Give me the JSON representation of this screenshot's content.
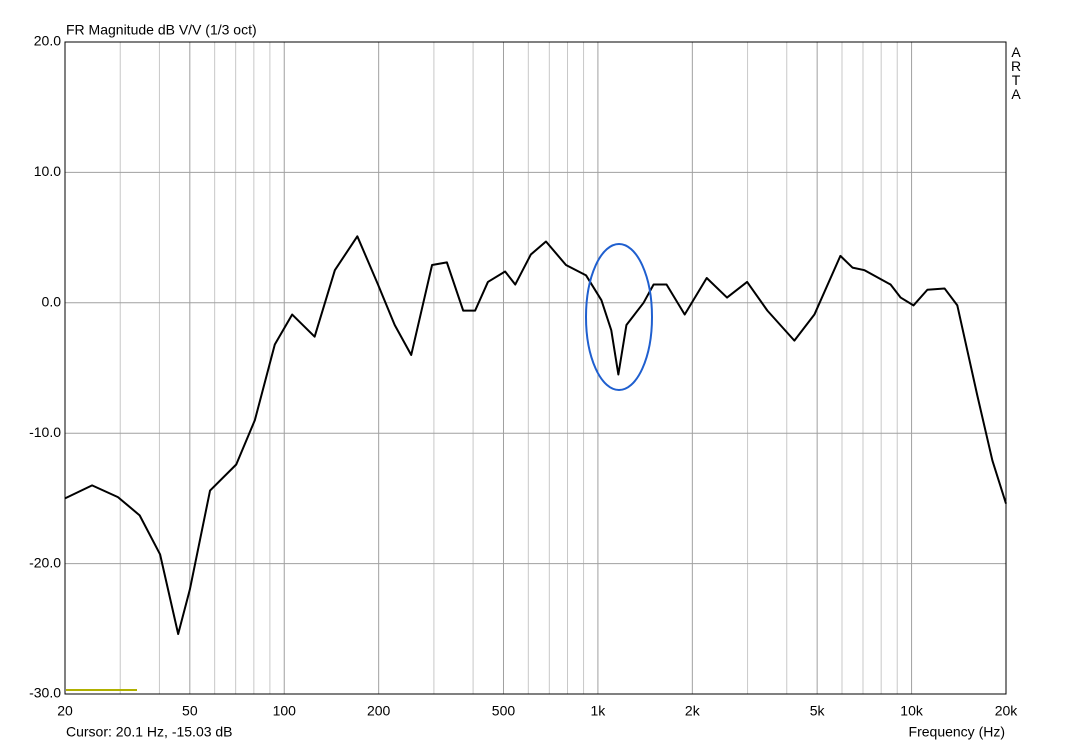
{
  "chart_data": {
    "type": "line",
    "title": "FR Magnitude dB V/V (1/3 oct)",
    "brand": "ARTA",
    "cursor_readout": "Cursor: 20.1 Hz, -15.03 dB",
    "x_label": "Frequency (Hz)",
    "log_x": true,
    "grid": true,
    "xlim": [
      20,
      20000
    ],
    "ylim": [
      -30,
      20
    ],
    "xticks": [
      20,
      50,
      100,
      200,
      500,
      {
        "value": 1000,
        "label": "1k"
      },
      {
        "value": 2000,
        "label": "2k"
      },
      {
        "value": 5000,
        "label": "5k"
      },
      {
        "value": 10000,
        "label": "10k"
      },
      {
        "value": 20000,
        "label": "20k"
      }
    ],
    "xminorticks": [
      30,
      40,
      60,
      70,
      80,
      90,
      300,
      400,
      600,
      700,
      800,
      900,
      3000,
      4000,
      6000,
      7000,
      8000,
      9000
    ],
    "yticks": [
      {
        "value": 20,
        "label": "20.0"
      },
      {
        "value": 10,
        "label": "10.0"
      },
      {
        "value": 0,
        "label": "0.0"
      },
      {
        "value": -10,
        "label": "-10.0"
      },
      {
        "value": -20,
        "label": "-20.0"
      },
      {
        "value": -30,
        "label": "-30.0"
      }
    ],
    "series": [
      {
        "color": "#000000",
        "x": [
          20,
          24.4,
          29.5,
          34.6,
          40.2,
          45.9,
          50,
          58,
          70.3,
          80.6,
          93.3,
          106,
          125,
          145,
          171,
          199,
          225,
          254,
          296,
          330,
          372,
          406,
          446,
          506,
          545,
          611,
          683,
          791,
          917,
          1026,
          1103,
          1162,
          1233,
          1398,
          1505,
          1655,
          1891,
          2223,
          2580,
          2990,
          3470,
          4230,
          4900,
          5930,
          6480,
          7080,
          8570,
          9230,
          10140,
          11230,
          12740,
          13990,
          16200,
          18100,
          20000
        ],
        "values": [
          -15.0,
          -14.0,
          -14.9,
          -16.3,
          -19.3,
          -25.4,
          -22.0,
          -14.4,
          -12.4,
          -9.0,
          -3.2,
          -0.9,
          -2.6,
          2.5,
          5.1,
          1.4,
          -1.7,
          -4.0,
          2.9,
          3.1,
          -0.6,
          -0.6,
          1.6,
          2.4,
          1.4,
          3.7,
          4.7,
          2.9,
          2.1,
          0.2,
          -2.1,
          -5.5,
          -1.7,
          0.0,
          1.4,
          1.4,
          -0.9,
          1.9,
          0.4,
          1.6,
          -0.6,
          -2.9,
          -0.9,
          3.6,
          2.7,
          2.5,
          1.4,
          0.4,
          -0.2,
          1.0,
          1.1,
          -0.2,
          -7.1,
          -12.1,
          -15.4
        ]
      }
    ]
  }
}
